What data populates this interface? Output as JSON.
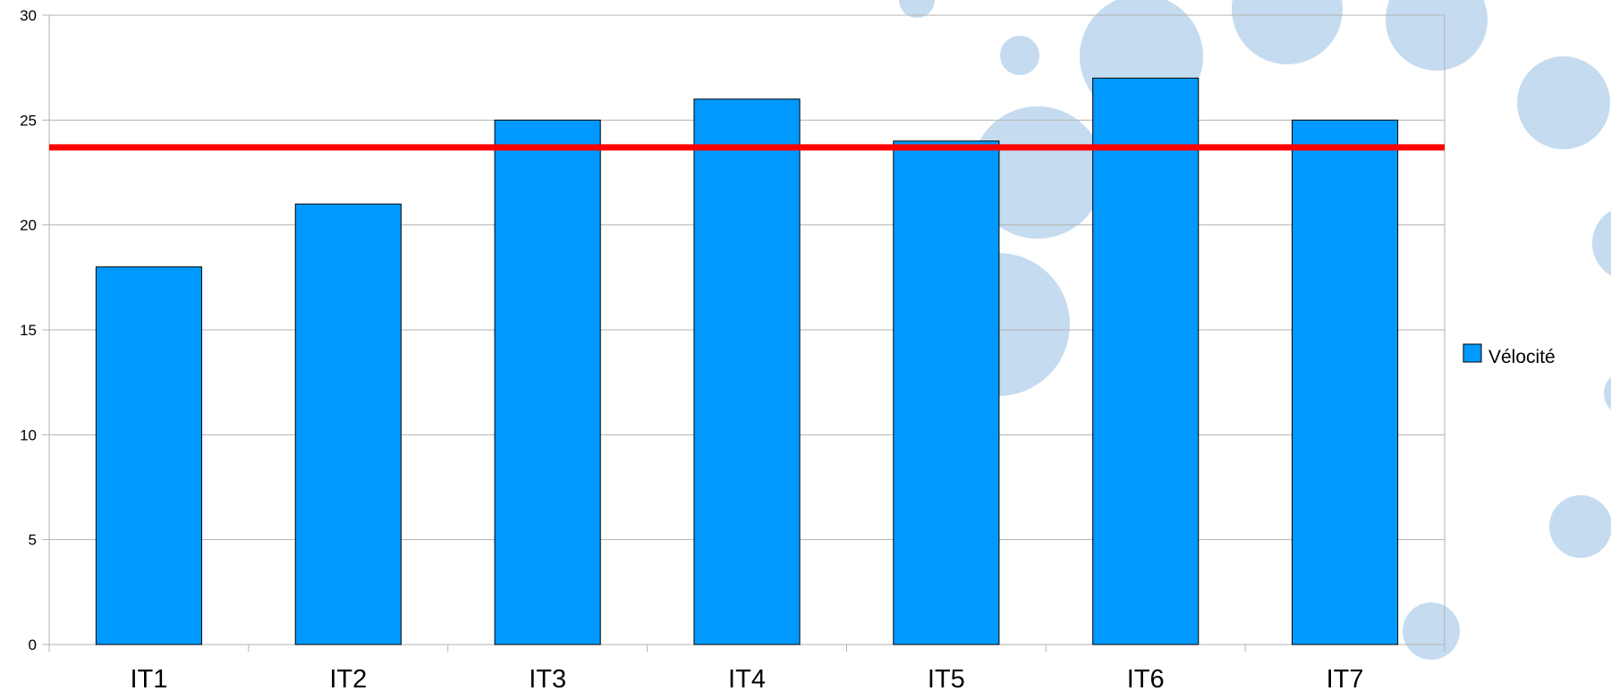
{
  "chart_data": {
    "type": "bar",
    "title": "",
    "xlabel": "",
    "ylabel": "",
    "categories": [
      "IT1",
      "IT2",
      "IT3",
      "IT4",
      "IT5",
      "IT6",
      "IT7"
    ],
    "series": [
      {
        "name": "Vélocité",
        "values": [
          18,
          21,
          25,
          26,
          24,
          27,
          25
        ],
        "color": "#0099ff"
      }
    ],
    "reference_line": {
      "value": 23.7,
      "color": "#ff0000"
    },
    "ylim": [
      0,
      30
    ],
    "yticks": [
      "0",
      "5",
      "10",
      "15",
      "20",
      "25",
      "30"
    ],
    "grid": true,
    "legend": {
      "position": "right",
      "label": "Vélocité"
    },
    "colors": {
      "bar": "#0099ff",
      "bar_stroke": "#000000",
      "reference_line": "#ff0000",
      "grid": "#b3b3b3",
      "background_bubble": "#c2d9ee"
    }
  }
}
